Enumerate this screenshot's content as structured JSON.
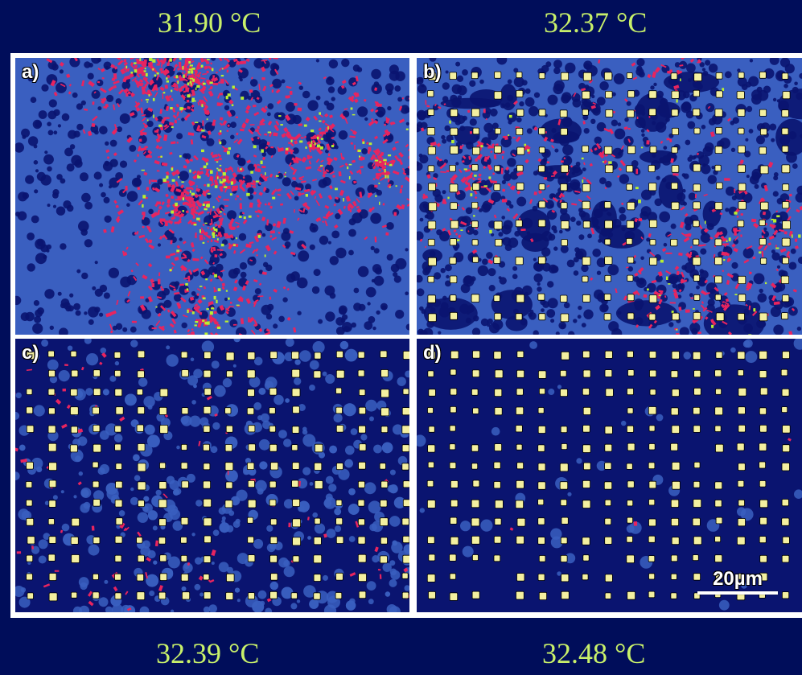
{
  "temperatures": {
    "a": "31.90 °C",
    "b": "32.37 °C",
    "c": "32.39 °C",
    "d": "32.48 °C"
  },
  "panels": [
    {
      "id": "a",
      "label": "a)",
      "description_level": 0.0
    },
    {
      "id": "b",
      "label": "b)",
      "description_level": 0.45
    },
    {
      "id": "c",
      "label": "c)",
      "description_level": 0.75
    },
    {
      "id": "d",
      "label": "d)",
      "description_level": 1.0
    }
  ],
  "scale_bar": {
    "label": "20µm"
  },
  "colors": {
    "background": "#000d5a",
    "temperature_text": "#c8f06a",
    "phase_blue": "#3a5fc0",
    "phase_dark": "#0a1470",
    "phase_red": "#e8245f",
    "phase_green": "#b8f030",
    "dot_yellow": "#f4f0a0"
  }
}
